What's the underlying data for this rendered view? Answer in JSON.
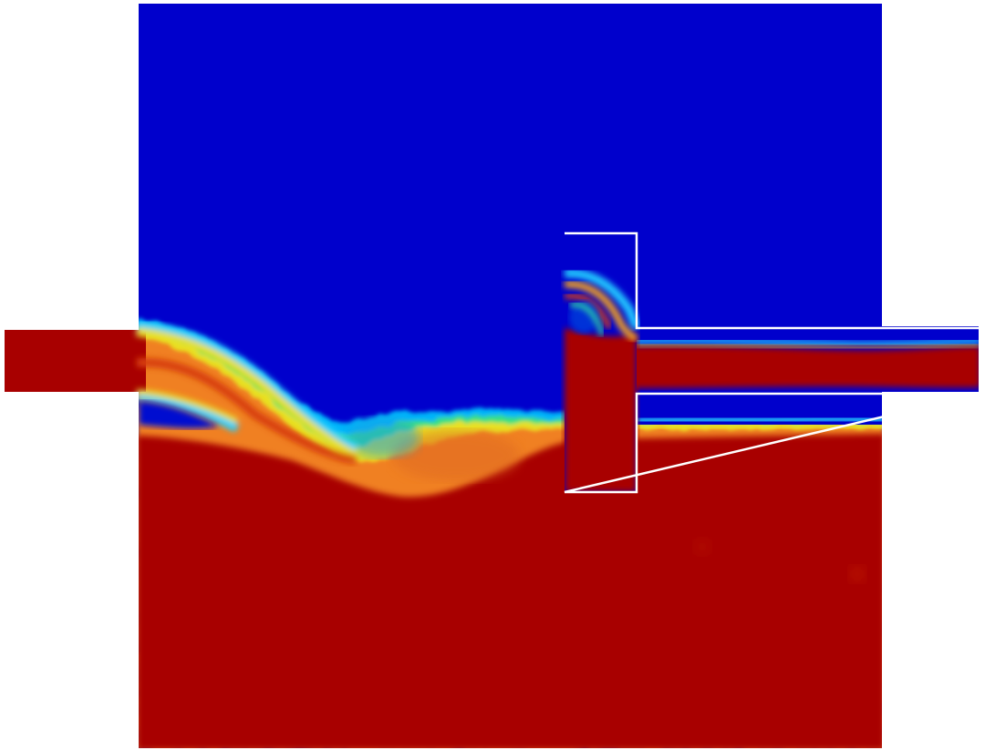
{
  "figure": {
    "type": "cfd-phase-fraction-contour",
    "colormap": "jet",
    "colors": {
      "background": "#ffffff",
      "phase_low": "#0000cc",
      "phase_high": "#a80000",
      "baffle_outline": "#ffffff"
    },
    "scale": {
      "min": 0,
      "max": 1
    },
    "regions": [
      {
        "name": "main-chamber",
        "phase": "blue-over-red"
      },
      {
        "name": "left-inlet-channel",
        "phase": "red"
      },
      {
        "name": "right-outlet-channel",
        "phase": "red-core-blue-edges"
      },
      {
        "name": "vertical-baffle",
        "phase": "red"
      }
    ]
  }
}
